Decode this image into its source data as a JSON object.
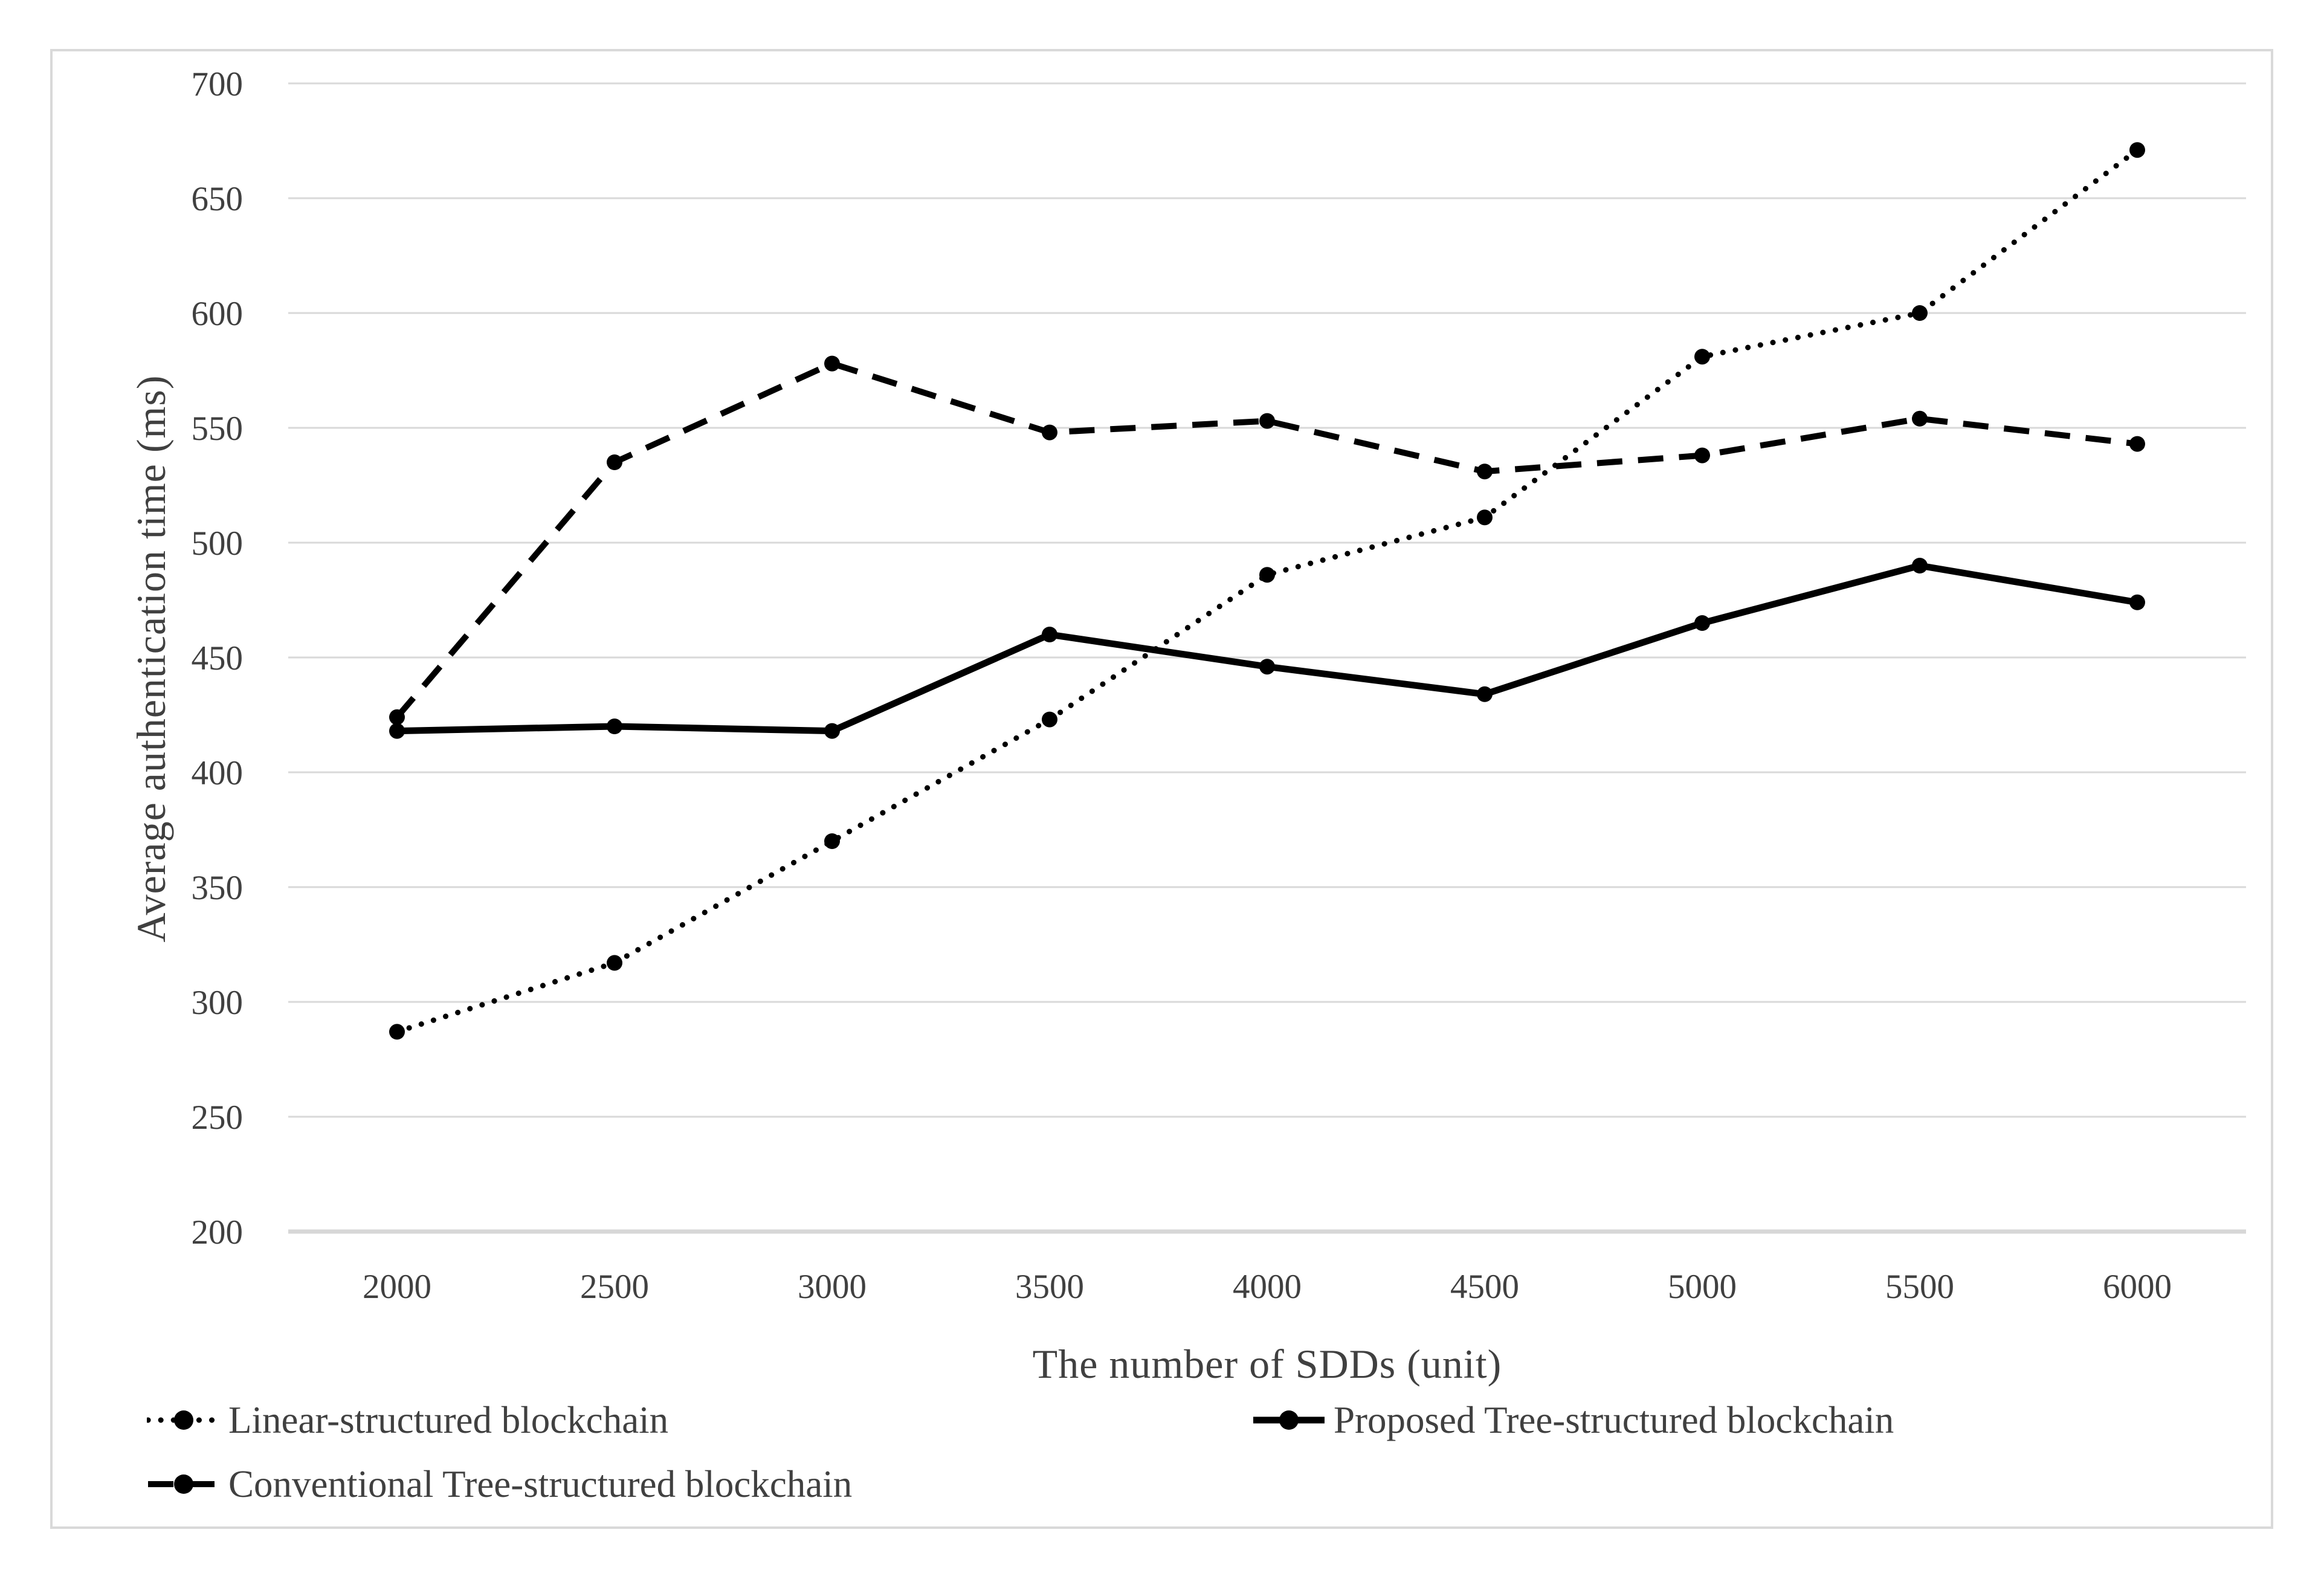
{
  "chart_data": {
    "type": "line",
    "title": "",
    "xlabel": "The number of SDDs (unit)",
    "ylabel": "Average authentication time (ms)",
    "x": [
      2000,
      2500,
      3000,
      3500,
      4000,
      4500,
      5000,
      5500,
      6000
    ],
    "ylim": [
      200,
      700
    ],
    "ytick_step": 50,
    "grid": true,
    "legend_position": "bottom",
    "series": [
      {
        "name": "Linear-structured blockchain",
        "line_style": "dotted",
        "marker": "filled-circle",
        "color": "#000000",
        "values": [
          287,
          317,
          370,
          423,
          486,
          511,
          581,
          600,
          671
        ]
      },
      {
        "name": "Proposed Tree-structured blockchain",
        "line_style": "solid",
        "marker": "filled-circle",
        "color": "#000000",
        "values": [
          418,
          420,
          418,
          460,
          446,
          434,
          465,
          490,
          474
        ]
      },
      {
        "name": "Conventional Tree-structured blockchain",
        "line_style": "dashed",
        "marker": "filled-circle",
        "color": "#000000",
        "values": [
          424,
          535,
          578,
          548,
          553,
          531,
          538,
          554,
          543
        ]
      }
    ]
  },
  "colors": {
    "text": "#404040",
    "grid": "#d9d9d9",
    "axis_line": "#d7d7d7",
    "series": "#000000",
    "frame_border": "#d9d9d9",
    "background": "#ffffff"
  }
}
